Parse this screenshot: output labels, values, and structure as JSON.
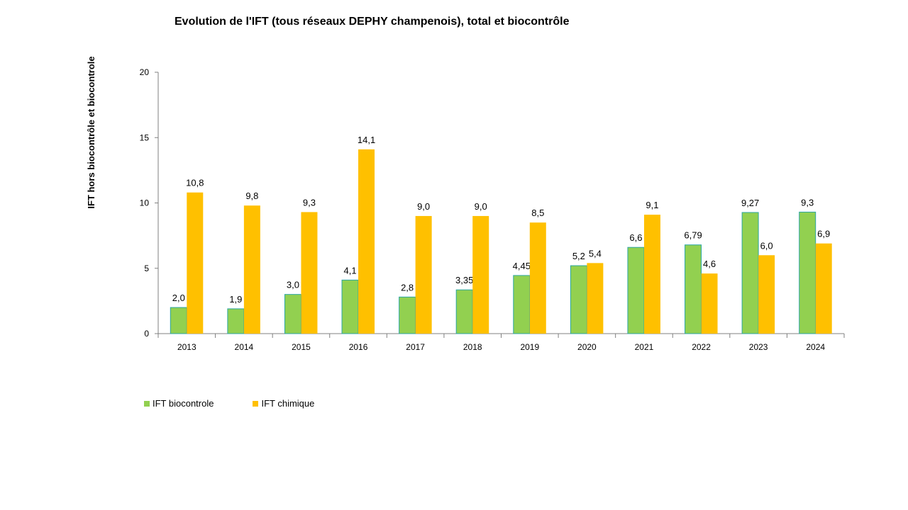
{
  "colors": {
    "biocontrole": "#92D050",
    "biocontrole_border": "#2CA6A4",
    "chimique": "#FFC000",
    "axis": "#808080"
  },
  "chart_data": {
    "type": "bar",
    "title": "Evolution de l'IFT (tous réseaux DEPHY champenois),  total et biocontrôle",
    "xlabel": "",
    "ylabel": "IFT  hors biocontrôle et biocontrole",
    "ylim": [
      0,
      20
    ],
    "yticks": [
      "0",
      "5",
      "10",
      "15",
      "20"
    ],
    "grid": false,
    "legend_position": "bottom-left",
    "categories": [
      "2013",
      "2014",
      "2015",
      "2016",
      "2017",
      "2018",
      "2019",
      "2020",
      "2021",
      "2022",
      "2023",
      "2024"
    ],
    "series": [
      {
        "name": "IFT biocontrole",
        "values": [
          2.0,
          1.9,
          3.0,
          4.1,
          2.8,
          3.35,
          4.45,
          5.2,
          6.6,
          6.79,
          9.27,
          9.3
        ],
        "labels": [
          "2,0",
          "1,9",
          "3,0",
          "4,1",
          "2,8",
          "3,35",
          "4,45",
          "5,2",
          "6,6",
          "6,79",
          "9,27",
          "9,3"
        ]
      },
      {
        "name": "IFT chimique",
        "values": [
          10.8,
          9.8,
          9.3,
          14.1,
          9.0,
          9.0,
          8.5,
          5.4,
          9.1,
          4.6,
          6.0,
          6.9
        ],
        "labels": [
          "10,8",
          "9,8",
          "9,3",
          "14,1",
          "9,0",
          "9,0",
          "8,5",
          "5,4",
          "9,1",
          "4,6",
          "6,0",
          "6,9"
        ]
      }
    ]
  }
}
